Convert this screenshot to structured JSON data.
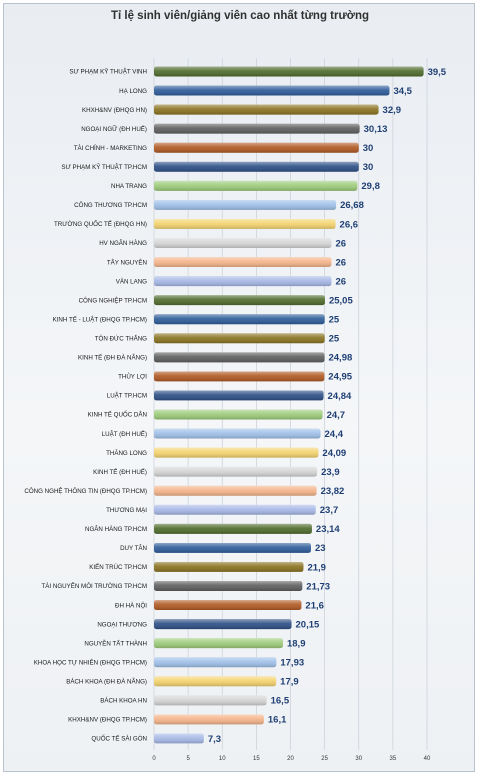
{
  "chart_data": {
    "type": "bar",
    "orientation": "horizontal",
    "title": "Tỉ lệ sinh viên/giảng viên cao nhất từng trường",
    "xlabel": "",
    "ylabel": "",
    "xlim": [
      0,
      40
    ],
    "xticks": [
      "0",
      "5",
      "10",
      "15",
      "20",
      "25",
      "30",
      "35",
      "40"
    ],
    "grid": true,
    "legend": "none",
    "categories": [
      "SƯ PHẠM KỸ THUẬT VINH",
      "HẠ LONG",
      "KHXH&NV (ĐHQG HN)",
      "NGOẠI NGỮ (ĐH HUẾ)",
      "TÀI CHÍNH - MARKETING",
      "SƯ PHẠM KỸ THUẬT TP.HCM",
      "NHA TRANG",
      "CÔNG THƯƠNG TP.HCM",
      "TRƯỜNG QUỐC TẾ (ĐHQG HN)",
      "HV NGÂN HÀNG",
      "TÂY NGUYÊN",
      "VĂN LANG",
      "CÔNG NGHIỆP TP.HCM",
      "KINH TẾ - LUẬT (ĐHQG TP.HCM)",
      "TÔN ĐỨC THẮNG",
      "KINH TẾ (ĐH ĐÀ NẴNG)",
      "THỦY LỢI",
      "LUẬT TP.HCM",
      "KINH TẾ QUỐC DÂN",
      "LUẬT (ĐH HUẾ)",
      "THĂNG LONG",
      "KINH TẾ (ĐH HUẾ)",
      "CÔNG NGHỆ THÔNG TIN (ĐHQG TP.HCM)",
      "THƯƠNG MẠI",
      "NGÂN HÀNG TP.HCM",
      "DUY TÂN",
      "KIẾN TRÚC TP.HCM",
      "TÀI NGUYÊN MÔI TRƯỜNG TP.HCM",
      "ĐH HÀ NỘI",
      "NGOẠI THƯƠNG",
      "NGUYỄN TẤT THÀNH",
      "KHOA HỌC TỰ NHIÊN (ĐHQG TP.HCM)",
      "BÁCH KHOA (ĐH ĐÀ NẴNG)",
      "BÁCH KHOA HN",
      "KHXH&NV (ĐHQG TP.HCM)",
      "QUỐC TẾ SÀI GÒN"
    ],
    "values": [
      39.5,
      34.5,
      32.9,
      30.13,
      30,
      30,
      29.8,
      26.68,
      26.6,
      26,
      26,
      26,
      25.05,
      25,
      25,
      24.98,
      24.95,
      24.84,
      24.7,
      24.4,
      24.09,
      23.9,
      23.82,
      23.7,
      23.14,
      23,
      21.9,
      21.73,
      21.6,
      20.15,
      18.9,
      17.93,
      17.9,
      16.5,
      16.1,
      7.3
    ],
    "labels": [
      "39,5",
      "34,5",
      "32,9",
      "30,13",
      "30",
      "30",
      "29,8",
      "26,68",
      "26,6",
      "26",
      "26",
      "26",
      "25,05",
      "25",
      "25",
      "24,98",
      "24,95",
      "24,84",
      "24,7",
      "24,4",
      "24,09",
      "23,9",
      "23,82",
      "23,7",
      "23,14",
      "23",
      "21,9",
      "21,73",
      "21,6",
      "20,15",
      "18,9",
      "17,93",
      "17,9",
      "16,5",
      "16,1",
      "7,3"
    ],
    "colors": [
      "#4f6b2c",
      "#2e5c9a",
      "#8a7220",
      "#5e5e5e",
      "#b05a23",
      "#2d4f86",
      "#9ccb79",
      "#9fc0e8",
      "#f4d36e",
      "#d4d4d4",
      "#f4b48a",
      "#a6b8e6"
    ]
  }
}
